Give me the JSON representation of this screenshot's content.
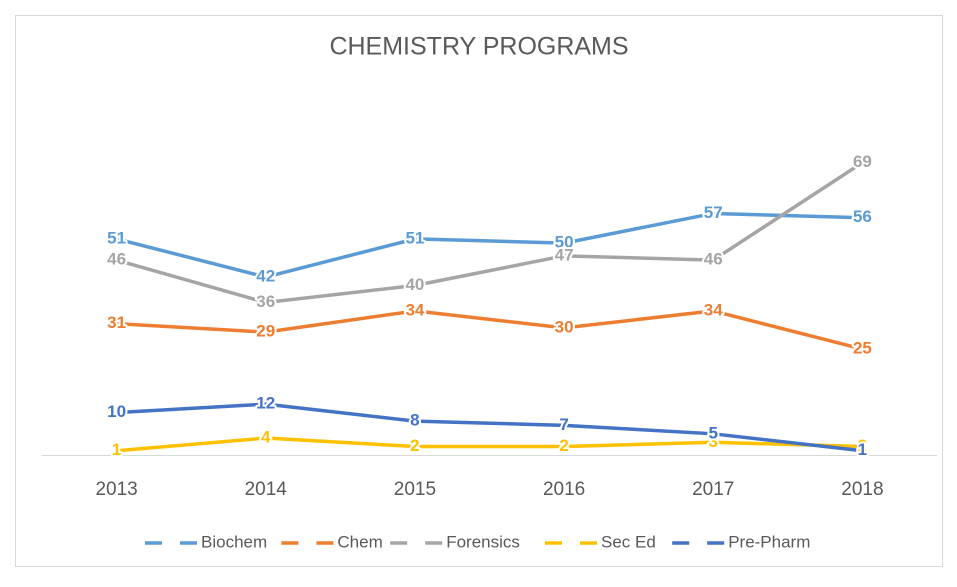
{
  "chart_data": {
    "type": "line",
    "title": "CHEMISTRY PROGRAMS",
    "categories": [
      "2013",
      "2014",
      "2015",
      "2016",
      "2017",
      "2018"
    ],
    "series": [
      {
        "name": "Biochem",
        "color": "#5b9bd5",
        "values": [
          51,
          42,
          51,
          50,
          57,
          56
        ]
      },
      {
        "name": "Chem",
        "color": "#ed7d31",
        "values": [
          31,
          29,
          34,
          30,
          34,
          25
        ]
      },
      {
        "name": "Forensics",
        "color": "#a5a5a5",
        "values": [
          46,
          36,
          40,
          47,
          46,
          69
        ]
      },
      {
        "name": "Sec Ed",
        "color": "#ffc000",
        "values": [
          1,
          4,
          2,
          2,
          3,
          2
        ]
      },
      {
        "name": "Pre-Pharm",
        "color": "#4472c4",
        "values": [
          10,
          12,
          8,
          7,
          5,
          1
        ]
      }
    ],
    "ylim": [
      0,
      80
    ],
    "legend": "bottom"
  }
}
